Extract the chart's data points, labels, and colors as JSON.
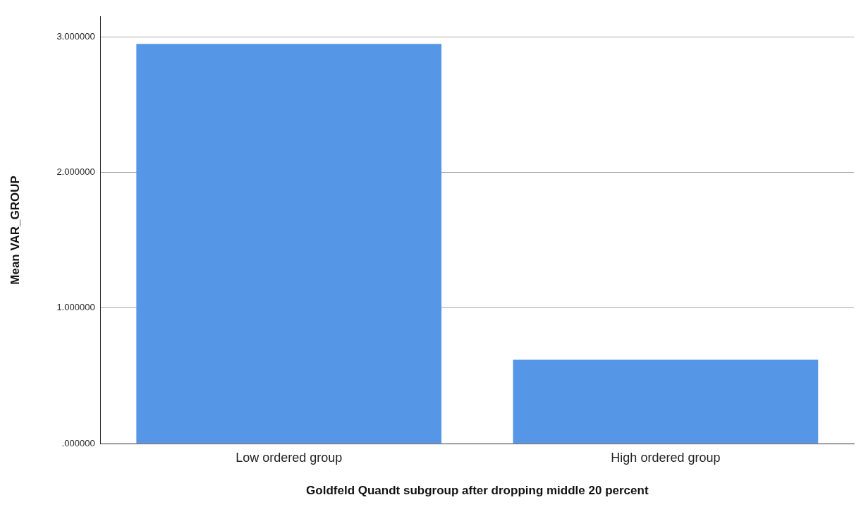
{
  "chart_data": {
    "type": "bar",
    "xlabel": "Goldfeld Quandt subgroup after dropping middle 20 percent",
    "ylabel": "Mean VAR_GROUP",
    "categories": [
      "Low ordered group",
      "High ordered group"
    ],
    "values": [
      2.95,
      0.62
    ],
    "color": "#5596e6",
    "ylim": [
      0,
      3.15
    ],
    "yticks": [
      {
        "value": 0,
        "label": ".000000"
      },
      {
        "value": 1,
        "label": "1.000000"
      },
      {
        "value": 2,
        "label": "2.000000"
      },
      {
        "value": 3,
        "label": "3.000000"
      }
    ],
    "grid": "y"
  }
}
